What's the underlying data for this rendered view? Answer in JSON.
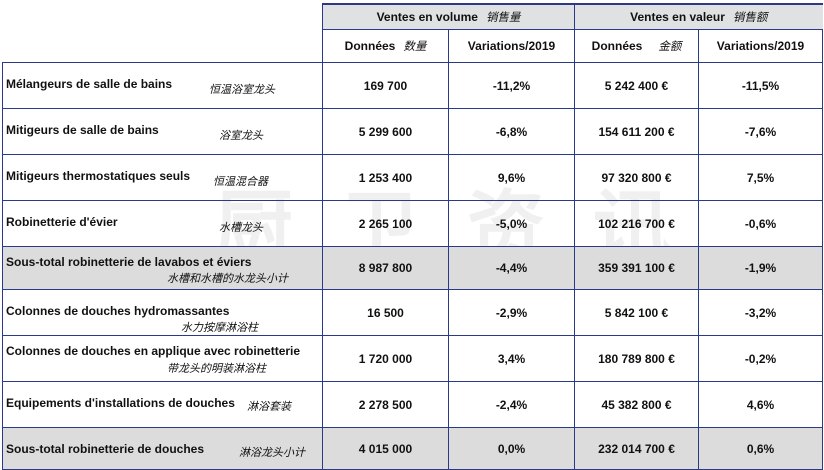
{
  "header": {
    "volume_title": "Ventes en volume",
    "volume_title_cn": "销售量",
    "value_title": "Ventes en valeur",
    "value_title_cn": "销售额",
    "col_data_volume": "Données",
    "col_data_volume_cn": "数量",
    "col_var_volume": "Variations/2019",
    "col_data_value": "Données",
    "col_data_value_cn": "金额",
    "col_var_value": "Variations/2019"
  },
  "rows": [
    {
      "label": "Mélangeurs de salle de bains",
      "label_cn": "恒温浴室龙头",
      "volume": "169 700",
      "var_volume": "-11,2%",
      "value": "5 242 400 €",
      "var_value": "-11,5%",
      "subtotal": false
    },
    {
      "label": "Mitigeurs de salle de bains",
      "label_cn": "浴室龙头",
      "volume": "5 299 600",
      "var_volume": "-6,8%",
      "value": "154 611 200 €",
      "var_value": "-7,6%",
      "subtotal": false
    },
    {
      "label": "Mitigeurs thermostatiques seuls",
      "label_cn": "恒温混合器",
      "volume": "1 253 400",
      "var_volume": "9,6%",
      "value": "97 320 800 €",
      "var_value": "7,5%",
      "subtotal": false
    },
    {
      "label": "Robinetterie d'évier",
      "label_cn": "水槽龙头",
      "volume": "2 265 100",
      "var_volume": "-5,0%",
      "value": "102 216 700 €",
      "var_value": "-0,6%",
      "subtotal": false
    },
    {
      "label": "Sous-total robinetterie de lavabos et éviers",
      "label_cn": "水槽和水槽的水龙头小计",
      "volume": "8 987 800",
      "var_volume": "-4,4%",
      "value": "359 391 100 €",
      "var_value": "-1,9%",
      "subtotal": true
    },
    {
      "label": "Colonnes de douches hydromassantes",
      "label_cn": "水力按摩淋浴柱",
      "volume": "16 500",
      "var_volume": "-2,9%",
      "value": "5 842 100 €",
      "var_value": "-3,2%",
      "subtotal": false
    },
    {
      "label": "Colonnes de douches en applique avec robinetterie",
      "label_cn": "带龙头的明装淋浴柱",
      "volume": "1 720 000",
      "var_volume": "3,4%",
      "value": "180 789 800 €",
      "var_value": "-0,2%",
      "subtotal": false
    },
    {
      "label": "Equipements d'installations de douches",
      "label_cn": "淋浴套装",
      "volume": "2 278 500",
      "var_volume": "-2,4%",
      "value": "45 382 800 €",
      "var_value": "4,6%",
      "subtotal": false
    },
    {
      "label": "Sous-total robinetterie de douches",
      "label_cn": "淋浴龙头小计",
      "volume": "4 015 000",
      "var_volume": "0,0%",
      "value": "232 014 700 €",
      "var_value": "0,6%",
      "subtotal": true
    }
  ],
  "watermark": "厨卫资讯"
}
